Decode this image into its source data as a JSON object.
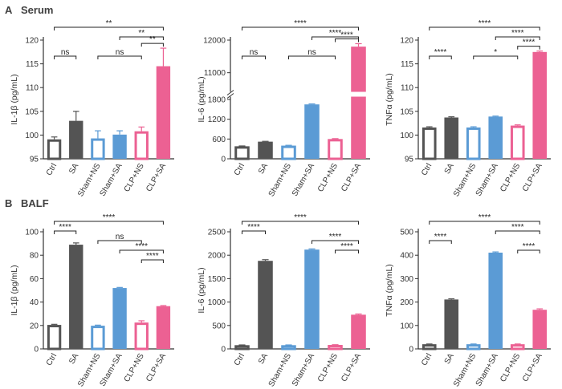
{
  "figure": {
    "sections": [
      {
        "letter": "A",
        "label": "Serum"
      },
      {
        "letter": "B",
        "label": "BALF"
      }
    ]
  },
  "colors": {
    "dark": "#545454",
    "blue": "#5b9bd5",
    "pink": "#ec6193",
    "axis": "#333333"
  },
  "chart_data": [
    {
      "type": "bar",
      "section": "Serum",
      "ylabel": "IL-1β (pg/mL)",
      "categories": [
        "Ctrl",
        "SA",
        "Sham+NS",
        "Sham+SA",
        "CLP+NS",
        "CLP+SA"
      ],
      "values": [
        99.1,
        103.0,
        99.3,
        100.1,
        100.8,
        114.5
      ],
      "errors": [
        0.5,
        2.0,
        1.6,
        0.8,
        0.9,
        3.8
      ],
      "fill": [
        "outline",
        "solid",
        "outline",
        "solid",
        "outline",
        "solid"
      ],
      "colors": [
        "dark",
        "dark",
        "blue",
        "blue",
        "pink",
        "pink"
      ],
      "ylim": [
        95,
        120
      ],
      "ticks": [
        "95",
        "100",
        "105",
        "110",
        "115",
        "120"
      ],
      "brackets": [
        {
          "from": 0,
          "to": 5,
          "label": "**",
          "level": 0
        },
        {
          "from": 3,
          "to": 5,
          "label": "**",
          "level": 1
        },
        {
          "from": 4,
          "to": 5,
          "label": "**",
          "level": 2
        },
        {
          "from": 0,
          "to": 1,
          "label": "ns",
          "level": 3
        },
        {
          "from": 2,
          "to": 4,
          "label": "ns",
          "level": 3
        }
      ]
    },
    {
      "type": "bar",
      "section": "Serum",
      "ylabel": "IL-6 (pg/mL)",
      "axis_break": true,
      "categories": [
        "Ctrl",
        "SA",
        "Sham+NS",
        "Sham+SA",
        "CLP+NS",
        "CLP+SA"
      ],
      "values": [
        380,
        520,
        400,
        1650,
        600,
        11800
      ],
      "errors": [
        10,
        10,
        10,
        15,
        12,
        90
      ],
      "fill": [
        "outline",
        "solid",
        "outline",
        "solid",
        "outline",
        "solid"
      ],
      "colors": [
        "dark",
        "dark",
        "blue",
        "blue",
        "pink",
        "pink"
      ],
      "ylim": [
        0,
        12000
      ],
      "ticks": [
        "0",
        "600",
        "1200",
        "1800",
        "11000",
        "12000"
      ],
      "brackets": [
        {
          "from": 0,
          "to": 5,
          "label": "****",
          "level": 0
        },
        {
          "from": 3,
          "to": 5,
          "label": "****",
          "level": 1
        },
        {
          "from": 4,
          "to": 5,
          "label": "****",
          "level": 2
        },
        {
          "from": 0,
          "to": 1,
          "label": "ns",
          "level": 3
        },
        {
          "from": 2,
          "to": 4,
          "label": "ns",
          "level": 3
        }
      ]
    },
    {
      "type": "bar",
      "section": "Serum",
      "ylabel": "TNFα (pg/mL)",
      "categories": [
        "Ctrl",
        "SA",
        "Sham+NS",
        "Sham+SA",
        "CLP+NS",
        "CLP+SA"
      ],
      "values": [
        101.6,
        103.7,
        101.6,
        103.9,
        102.0,
        117.5
      ],
      "errors": [
        0.15,
        0.15,
        0.15,
        0.1,
        0.15,
        0.2
      ],
      "fill": [
        "outline",
        "solid",
        "outline",
        "solid",
        "outline",
        "solid"
      ],
      "colors": [
        "dark",
        "dark",
        "blue",
        "blue",
        "pink",
        "pink"
      ],
      "ylim": [
        95,
        120
      ],
      "ticks": [
        "95",
        "100",
        "105",
        "110",
        "115",
        "120"
      ],
      "brackets": [
        {
          "from": 0,
          "to": 5,
          "label": "****",
          "level": 0
        },
        {
          "from": 3,
          "to": 5,
          "label": "****",
          "level": 1
        },
        {
          "from": 4,
          "to": 5,
          "label": "****",
          "level": 2
        },
        {
          "from": 0,
          "to": 1,
          "label": "****",
          "level": 3
        },
        {
          "from": 2,
          "to": 4,
          "label": "*",
          "level": 3
        }
      ]
    },
    {
      "type": "bar",
      "section": "BALF",
      "ylabel": "IL-1β (pg/mL)",
      "categories": [
        "Ctrl",
        "SA",
        "Sham+NS",
        "Sham+SA",
        "CLP+NS",
        "CLP+SA"
      ],
      "values": [
        20.5,
        89.0,
        19.8,
        52.0,
        22.5,
        36.5
      ],
      "errors": [
        0.5,
        1.5,
        0.5,
        0.5,
        1.5,
        0.5
      ],
      "fill": [
        "outline",
        "solid",
        "outline",
        "solid",
        "outline",
        "solid"
      ],
      "colors": [
        "dark",
        "dark",
        "blue",
        "blue",
        "pink",
        "pink"
      ],
      "ylim": [
        0,
        100
      ],
      "ticks": [
        "0",
        "20",
        "40",
        "60",
        "80",
        "100"
      ],
      "brackets": [
        {
          "from": 0,
          "to": 5,
          "label": "****",
          "level": 0
        },
        {
          "from": 0,
          "to": 1,
          "label": "****",
          "level": 1
        },
        {
          "from": 2,
          "to": 4,
          "label": "ns",
          "level": 2
        },
        {
          "from": 3,
          "to": 5,
          "label": "****",
          "level": 3
        },
        {
          "from": 4,
          "to": 5,
          "label": "****",
          "level": 4
        }
      ]
    },
    {
      "type": "bar",
      "section": "BALF",
      "ylabel": "IL-6 (pg/mL)",
      "categories": [
        "Ctrl",
        "SA",
        "Sham+NS",
        "Sham+SA",
        "CLP+NS",
        "CLP+SA"
      ],
      "values": [
        80,
        1880,
        80,
        2120,
        85,
        730
      ],
      "errors": [
        5,
        25,
        5,
        15,
        5,
        15
      ],
      "fill": [
        "outline",
        "solid",
        "outline",
        "solid",
        "outline",
        "solid"
      ],
      "colors": [
        "dark",
        "dark",
        "blue",
        "blue",
        "pink",
        "pink"
      ],
      "ylim": [
        0,
        2500
      ],
      "ticks": [
        "0",
        "500",
        "1000",
        "1500",
        "2000",
        "2500"
      ],
      "brackets": [
        {
          "from": 0,
          "to": 5,
          "label": "****",
          "level": 0
        },
        {
          "from": 0,
          "to": 1,
          "label": "****",
          "level": 1
        },
        {
          "from": 3,
          "to": 5,
          "label": "****",
          "level": 2
        },
        {
          "from": 4,
          "to": 5,
          "label": "****",
          "level": 3
        }
      ]
    },
    {
      "type": "bar",
      "section": "BALF",
      "ylabel": "TNFα (pg/mL)",
      "categories": [
        "Ctrl",
        "SA",
        "Sham+NS",
        "Sham+SA",
        "CLP+NS",
        "CLP+SA"
      ],
      "values": [
        20,
        211,
        20,
        411,
        20,
        167
      ],
      "errors": [
        1,
        3,
        1,
        3,
        1,
        4
      ],
      "fill": [
        "outline",
        "solid",
        "outline",
        "solid",
        "outline",
        "solid"
      ],
      "colors": [
        "dark",
        "dark",
        "blue",
        "blue",
        "pink",
        "pink"
      ],
      "ylim": [
        0,
        500
      ],
      "ticks": [
        "0",
        "100",
        "200",
        "300",
        "400",
        "500"
      ],
      "brackets": [
        {
          "from": 0,
          "to": 5,
          "label": "****",
          "level": 0
        },
        {
          "from": 3,
          "to": 5,
          "label": "****",
          "level": 1
        },
        {
          "from": 0,
          "to": 1,
          "label": "****",
          "level": 2
        },
        {
          "from": 4,
          "to": 5,
          "label": "****",
          "level": 3
        }
      ]
    }
  ]
}
